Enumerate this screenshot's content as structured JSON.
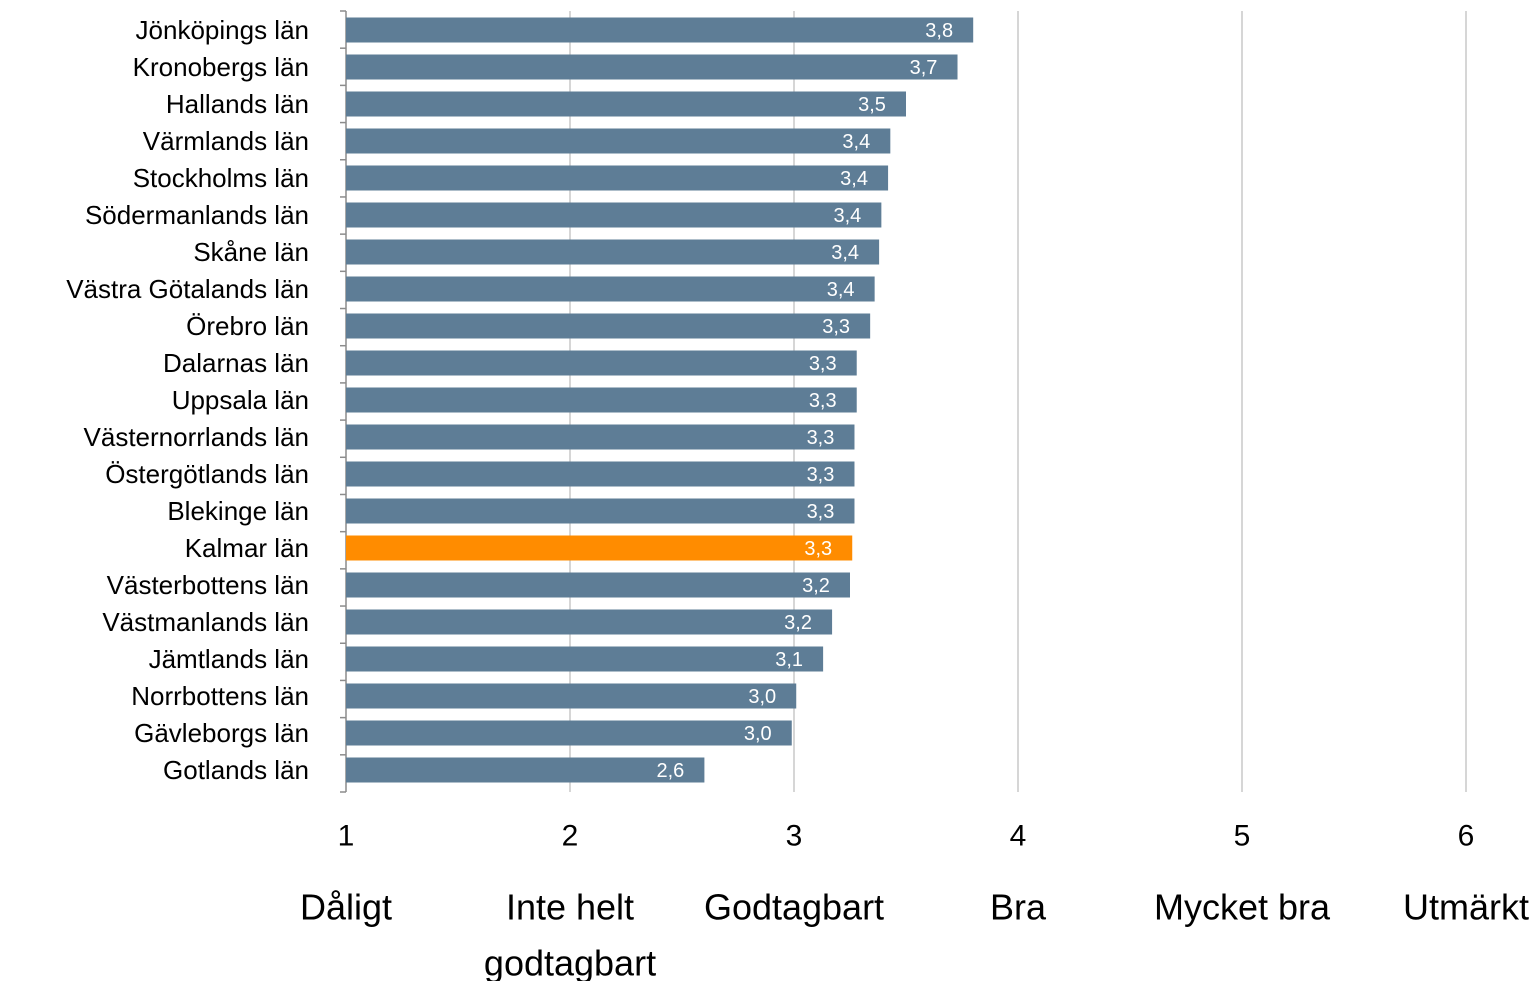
{
  "chart_data": {
    "type": "bar",
    "orientation": "horizontal",
    "title": "",
    "xlabel": "",
    "ylabel": "",
    "xlim": [
      1,
      6
    ],
    "grid": "vertical",
    "legend": "none",
    "colors": {
      "bar": "#5e7d96",
      "highlight": "#ff8c00",
      "gridline": "#c8c8c8",
      "axis": "#8c8c8c",
      "value_label": "#ffffff"
    },
    "x_ticks": [
      "1",
      "2",
      "3",
      "4",
      "5",
      "6"
    ],
    "rating_labels": [
      [
        "Dåligt"
      ],
      [
        "Inte helt",
        "godtagbart"
      ],
      [
        "Godtagbart"
      ],
      [
        "Bra"
      ],
      [
        "Mycket bra"
      ],
      [
        "Utmärkt"
      ]
    ],
    "highlight_category": "Kalmar län",
    "categories": [
      "Jönköpings län",
      "Kronobergs län",
      "Hallands län",
      "Värmlands län",
      "Stockholms län",
      "Södermanlands län",
      "Skåne län",
      "Västra Götalands län",
      "Örebro län",
      "Dalarnas län",
      "Uppsala län",
      "Västernorrlands län",
      "Östergötlands län",
      "Blekinge län",
      "Kalmar län",
      "Västerbottens län",
      "Västmanlands län",
      "Jämtlands län",
      "Norrbottens län",
      "Gävleborgs län",
      "Gotlands län"
    ],
    "values": [
      3.8,
      3.73,
      3.5,
      3.43,
      3.42,
      3.39,
      3.38,
      3.36,
      3.34,
      3.28,
      3.28,
      3.27,
      3.27,
      3.27,
      3.26,
      3.25,
      3.17,
      3.13,
      3.01,
      2.99,
      2.6
    ],
    "value_labels": [
      "3,8",
      "3,7",
      "3,5",
      "3,4",
      "3,4",
      "3,4",
      "3,4",
      "3,4",
      "3,3",
      "3,3",
      "3,3",
      "3,3",
      "3,3",
      "3,3",
      "3,3",
      "3,2",
      "3,2",
      "3,1",
      "3,0",
      "3,0",
      "2,6"
    ]
  }
}
